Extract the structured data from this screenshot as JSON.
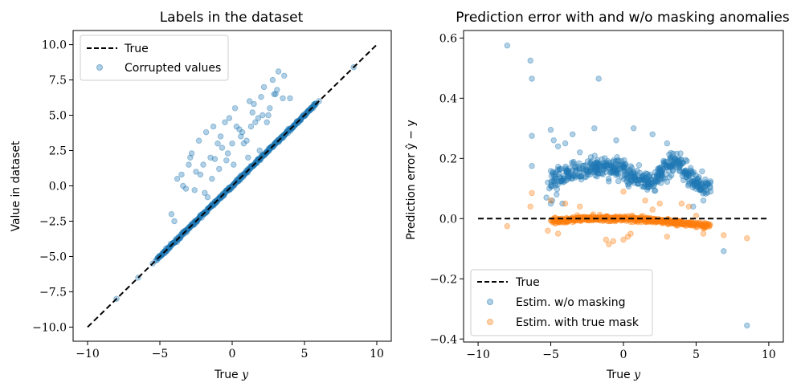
{
  "chart_data": [
    {
      "type": "scatter",
      "title": "Labels in the dataset",
      "xlabel": "True y",
      "ylabel": "Value in dataset",
      "xlim": [
        -11,
        11
      ],
      "ylim": [
        -11,
        11
      ],
      "xticks": [
        -10,
        -5,
        0,
        5,
        10
      ],
      "yticks": [
        -10.0,
        -7.5,
        -5.0,
        -2.5,
        0.0,
        2.5,
        5.0,
        7.5,
        10.0
      ],
      "xtick_labels": [
        "−10",
        "−5",
        "0",
        "5",
        "10"
      ],
      "ytick_labels": [
        "−10.0",
        "−7.5",
        "−5.0",
        "−2.5",
        "0.0",
        "2.5",
        "5.0",
        "7.5",
        "10.0"
      ],
      "grid": false,
      "legend_position": "top-left",
      "lines": [
        {
          "name": "True",
          "style": "dashed",
          "color": "#000000",
          "x": [
            -10,
            10
          ],
          "y": [
            -10,
            10
          ]
        }
      ],
      "series": [
        {
          "name": "Corrupted values",
          "color": "#1f77b4",
          "alpha": 0.35,
          "dense_band": {
            "x_range": [
              -5.2,
              5.8
            ],
            "offset": 0.0
          },
          "x": [
            -8.0,
            -6.5,
            -5.5,
            -5.3,
            -4.0,
            -3.5,
            -3.2,
            -3.0,
            -2.8,
            -2.5,
            -2.3,
            -2.0,
            -1.8,
            -1.5,
            -1.3,
            -1.0,
            -0.8,
            -0.5,
            -0.3,
            0.0,
            0.2,
            0.5,
            0.8,
            1.0,
            1.3,
            1.5,
            1.8,
            2.0,
            2.2,
            2.5,
            2.8,
            3.0,
            3.2,
            3.5,
            4.0,
            -2.2,
            -1.7,
            -1.2,
            -0.7,
            -0.2,
            0.3,
            0.7,
            1.2,
            1.6,
            2.1,
            2.6,
            3.1,
            -3.8,
            -2.6,
            -1.9,
            -0.9,
            0.1,
            1.1,
            1.9,
            2.4,
            -4.2,
            -3.4,
            -2.9,
            -1.4,
            -0.4,
            0.6,
            1.4,
            2.9,
            3.6,
            6.0,
            8.4
          ],
          "y": [
            -8.0,
            -6.5,
            -5.5,
            -5.3,
            -2.5,
            0.8,
            -0.2,
            1.5,
            2.3,
            1.0,
            3.2,
            1.5,
            3.8,
            2.0,
            4.2,
            3.0,
            3.5,
            4.5,
            2.3,
            3.0,
            5.5,
            4.0,
            3.0,
            3.2,
            4.2,
            5.8,
            4.8,
            6.3,
            7.0,
            5.0,
            7.5,
            6.5,
            8.1,
            6.2,
            6.2,
            0.8,
            -0.8,
            1.9,
            2.7,
            4.8,
            4.2,
            3.8,
            6.0,
            4.5,
            5.0,
            5.5,
            6.8,
            0.5,
            -0.3,
            -0.5,
            1.2,
            1.5,
            2.0,
            2.5,
            4.5,
            -2.0,
            0.0,
            2.0,
            0.5,
            1.8,
            3.5,
            5.2,
            6.5,
            7.8,
            6.0,
            8.4
          ]
        }
      ]
    },
    {
      "type": "scatter",
      "title": "Prediction error with and w/o masking anomalies",
      "xlabel": "True y",
      "ylabel": "Prediction error ŷ − y",
      "xlim": [
        -11,
        11
      ],
      "ylim": [
        -0.41,
        0.625
      ],
      "xticks": [
        -10,
        -5,
        0,
        5,
        10
      ],
      "yticks": [
        -0.4,
        -0.2,
        0.0,
        0.2,
        0.4,
        0.6
      ],
      "xtick_labels": [
        "−10",
        "−5",
        "0",
        "5",
        "10"
      ],
      "ytick_labels": [
        "−0.4",
        "−0.2",
        "0.0",
        "0.2",
        "0.4",
        "0.6"
      ],
      "grid": false,
      "legend_position": "bottom-left",
      "lines": [
        {
          "name": "True",
          "style": "dashed",
          "color": "#000000",
          "x": [
            -10,
            10
          ],
          "y": [
            0,
            0
          ]
        }
      ],
      "series": [
        {
          "name": "Estim. w/o masking",
          "color": "#1f77b4",
          "alpha": 0.35,
          "band_curve": {
            "x": [
              -5,
              -4,
              -3,
              -2,
              -1,
              0,
              1,
              2,
              3,
              3.5,
              4,
              5,
              6
            ],
            "y": [
              0.13,
              0.15,
              0.16,
              0.17,
              0.17,
              0.16,
              0.13,
              0.12,
              0.17,
              0.2,
              0.17,
              0.12,
              0.1
            ],
            "spread": 0.06
          },
          "x": [
            -8.0,
            -6.4,
            -6.3,
            -6.3,
            -6.3,
            -5.0,
            -4.8,
            -4.5,
            -4.0,
            -1.7,
            -5.1,
            -4.9,
            -5.3,
            -5.2,
            -3.5,
            -2.0,
            6.9,
            8.5,
            -5.0,
            -4.6,
            -3.0,
            0.7,
            -0.5,
            4.8,
            5.5,
            6.0,
            -4.2,
            2.0,
            3.0
          ],
          "y": [
            0.575,
            0.525,
            0.465,
            0.275,
            0.175,
            0.295,
            0.26,
            0.24,
            0.25,
            0.465,
            0.1,
            0.06,
            0.07,
            0.12,
            0.28,
            0.3,
            -0.108,
            -0.355,
            0.05,
            0.08,
            0.22,
            0.3,
            0.26,
            0.04,
            0.06,
            0.09,
            0.05,
            0.28,
            0.25
          ]
        },
        {
          "name": "Estim. with true mask",
          "color": "#ff7f0e",
          "alpha": 0.35,
          "band_curve": {
            "x": [
              -5,
              -3,
              -1,
              0,
              1,
              2,
              3,
              4,
              5,
              6
            ],
            "y": [
              -0.01,
              0.0,
              0.0,
              0.0,
              0.0,
              -0.005,
              -0.01,
              -0.015,
              -0.02,
              -0.025
            ],
            "spread": 0.015
          },
          "x": [
            -6.3,
            -6.4,
            -8.0,
            -5.0,
            -4.0,
            -5.2,
            -1.2,
            -1.0,
            -0.7,
            0.0,
            0.3,
            0.5,
            1.5,
            2.0,
            3.0,
            4.0,
            5.0,
            5.5,
            6.9,
            8.5,
            -4.5,
            -3.0,
            4.5,
            0.0,
            2.5
          ],
          "y": [
            0.085,
            0.04,
            -0.025,
            0.06,
            0.05,
            -0.04,
            -0.07,
            -0.085,
            -0.075,
            0.09,
            -0.06,
            -0.05,
            0.06,
            0.03,
            -0.06,
            0.05,
            0.01,
            -0.05,
            -0.055,
            -0.065,
            -0.05,
            0.04,
            0.04,
            -0.07,
            0.05
          ]
        }
      ]
    }
  ],
  "colors": {
    "blue": "#1f77b4",
    "orange": "#ff7f0e",
    "line": "#000000"
  }
}
